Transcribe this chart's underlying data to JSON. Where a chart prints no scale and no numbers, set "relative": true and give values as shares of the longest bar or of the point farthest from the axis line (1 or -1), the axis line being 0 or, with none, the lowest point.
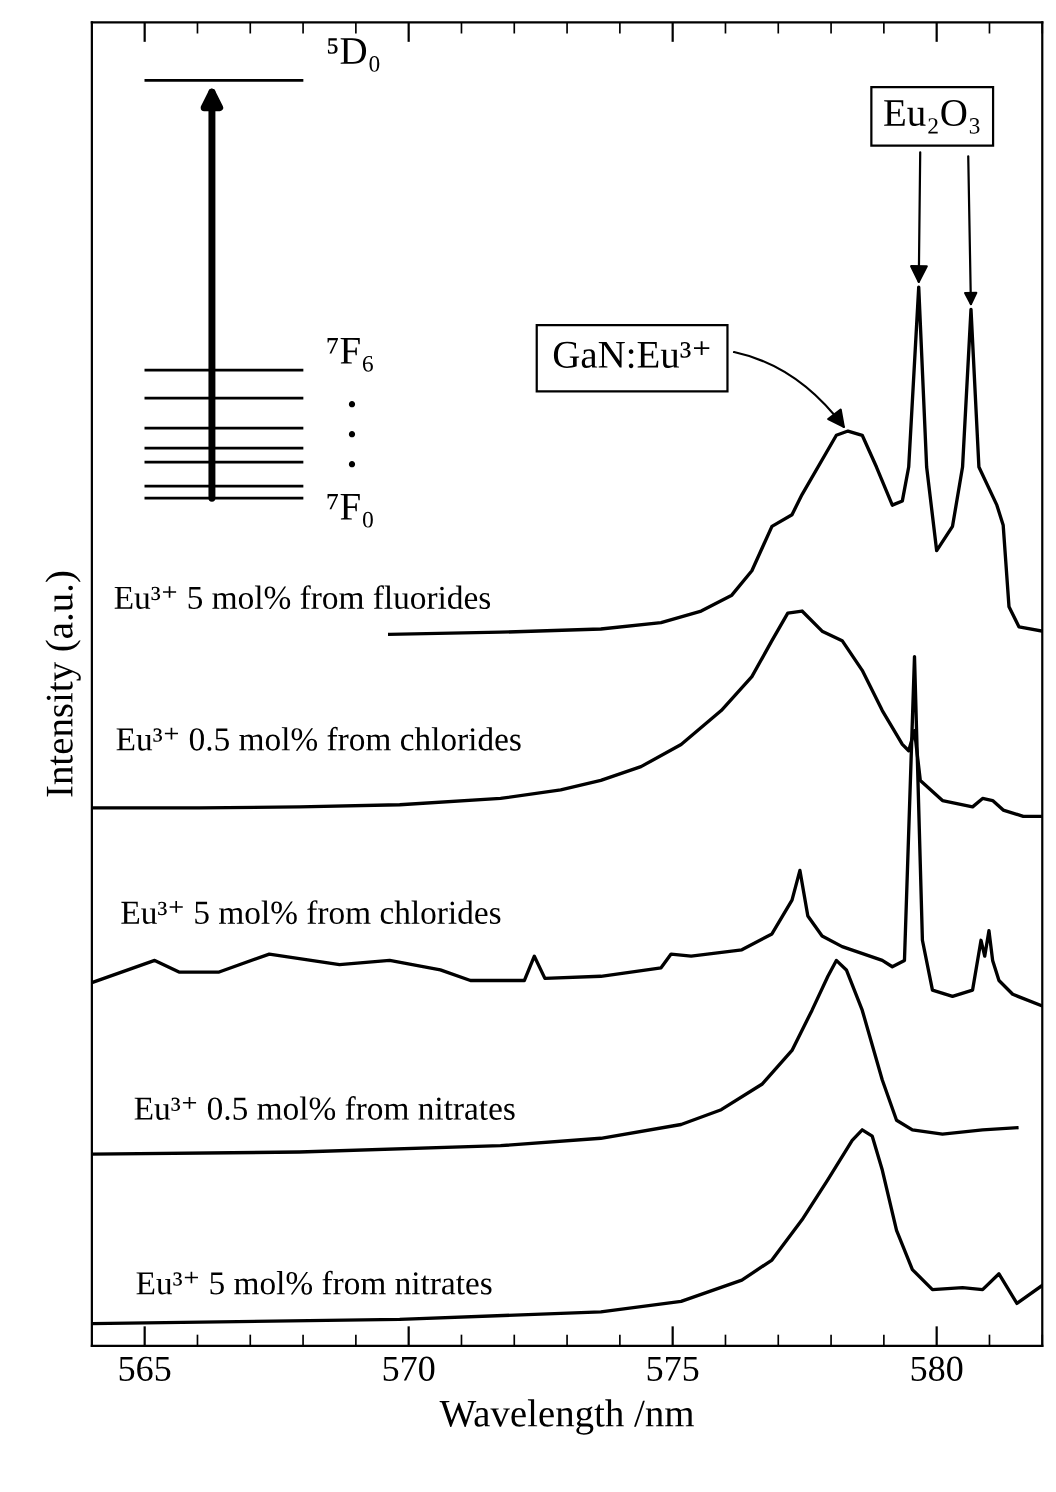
{
  "chart_data": {
    "type": "line",
    "relative": true,
    "xlabel": "Wavelength /nm",
    "ylabel": "Intensity (a.u.)",
    "xlim": [
      564,
      582
    ],
    "xticks": [
      565,
      {
        "value": 566,
        "label": null
      },
      {
        "value": 567,
        "label": null
      },
      {
        "value": 568,
        "label": null
      },
      {
        "value": 569,
        "label": null
      },
      570,
      {
        "value": 571,
        "label": null
      },
      {
        "value": 572,
        "label": null
      },
      {
        "value": 573,
        "label": null
      },
      {
        "value": 574,
        "label": null
      },
      575,
      {
        "value": 576,
        "label": null
      },
      {
        "value": 577,
        "label": null
      },
      {
        "value": 578,
        "label": null
      },
      {
        "value": 579,
        "label": null
      },
      580,
      {
        "value": 581,
        "label": null
      },
      {
        "value": 582,
        "label": null
      }
    ],
    "grid": false,
    "legend": false,
    "marker": "none",
    "line_style": "solid",
    "series": [
      {
        "name": "Eu³⁺ 5 mol% from fluorides",
        "color": "#000000",
        "x": [
          569.64,
          571.74,
          573.64,
          574.78,
          575.54,
          576.12,
          576.5,
          576.88,
          577.26,
          577.45,
          578.1,
          578.32,
          578.59,
          578.86,
          579.16,
          579.35,
          579.47,
          579.66,
          579.81,
          580.0,
          580.3,
          580.49,
          580.65,
          580.8,
          581.14,
          581.26,
          581.37,
          581.56,
          582
        ],
        "values": [
          0.672,
          0.674,
          0.677,
          0.683,
          0.694,
          0.709,
          0.732,
          0.774,
          0.785,
          0.804,
          0.86,
          0.864,
          0.86,
          0.83,
          0.794,
          0.798,
          0.83,
          1.0,
          0.83,
          0.751,
          0.774,
          0.83,
          0.979,
          0.83,
          0.794,
          0.775,
          0.698,
          0.679,
          0.675
        ]
      },
      {
        "name": "Eu³⁺ 0.5 mol% from chlorides",
        "color": "#000000",
        "x": [
          564,
          566.03,
          567.93,
          569.83,
          571.74,
          572.88,
          573.64,
          574.4,
          575.16,
          575.92,
          576.5,
          576.88,
          577.18,
          577.45,
          577.83,
          578.21,
          578.59,
          578.97,
          579.35,
          579.47,
          579.58,
          579.69,
          580.11,
          580.68,
          580.87,
          581.06,
          581.26,
          581.64,
          582
        ],
        "values": [
          0.508,
          0.508,
          0.509,
          0.511,
          0.517,
          0.525,
          0.534,
          0.547,
          0.568,
          0.6,
          0.632,
          0.666,
          0.692,
          0.694,
          0.675,
          0.666,
          0.638,
          0.6,
          0.568,
          0.562,
          0.581,
          0.534,
          0.515,
          0.509,
          0.517,
          0.515,
          0.506,
          0.5,
          0.5
        ]
      },
      {
        "name": "Eu³⁺ 5 mol% from chlorides",
        "color": "#000000",
        "x": [
          564,
          565.19,
          565.65,
          566.41,
          567.36,
          568.69,
          569.64,
          570.6,
          571.17,
          572.19,
          572.38,
          572.58,
          573.64,
          574.78,
          574.97,
          575.35,
          576.31,
          576.88,
          577.26,
          577.41,
          577.56,
          577.83,
          578.21,
          578.97,
          579.16,
          579.39,
          579.58,
          579.73,
          579.92,
          580.3,
          580.68,
          580.84,
          580.91,
          580.99,
          581.06,
          581.18,
          581.44,
          582
        ],
        "values": [
          0.343,
          0.364,
          0.353,
          0.353,
          0.37,
          0.36,
          0.364,
          0.355,
          0.345,
          0.345,
          0.368,
          0.347,
          0.349,
          0.357,
          0.37,
          0.368,
          0.374,
          0.389,
          0.421,
          0.449,
          0.406,
          0.387,
          0.377,
          0.364,
          0.358,
          0.364,
          0.651,
          0.383,
          0.336,
          0.33,
          0.336,
          0.383,
          0.368,
          0.392,
          0.364,
          0.345,
          0.332,
          0.321
        ]
      },
      {
        "name": "Eu³⁺ 0.5 mol% from nitrates",
        "color": "#000000",
        "x": [
          564,
          567.93,
          571.74,
          573.64,
          575.16,
          575.92,
          576.69,
          577.26,
          577.64,
          577.94,
          578.1,
          578.29,
          578.59,
          578.97,
          579.24,
          579.54,
          580.11,
          580.87,
          581.52
        ],
        "values": [
          0.181,
          0.183,
          0.189,
          0.196,
          0.209,
          0.223,
          0.247,
          0.279,
          0.317,
          0.349,
          0.364,
          0.355,
          0.317,
          0.251,
          0.213,
          0.204,
          0.2,
          0.204,
          0.206
        ]
      },
      {
        "name": "Eu³⁺ 5 mol% from nitrates",
        "color": "#000000",
        "x": [
          564,
          569.83,
          573.64,
          575.16,
          576.31,
          576.88,
          577.45,
          577.94,
          578.4,
          578.59,
          578.78,
          578.97,
          579.24,
          579.54,
          579.92,
          580.49,
          580.87,
          581.18,
          581.52,
          582
        ],
        "values": [
          0.021,
          0.025,
          0.032,
          0.042,
          0.062,
          0.081,
          0.119,
          0.157,
          0.194,
          0.204,
          0.198,
          0.166,
          0.109,
          0.072,
          0.053,
          0.055,
          0.053,
          0.068,
          0.04,
          0.057
        ]
      }
    ],
    "annotations": [
      "⁵D₀",
      "⁷F₆",
      "⁷F₀",
      {
        "text": "GaN:Eu³⁺",
        "x": 578.3,
        "y": 0.864
      },
      {
        "text": "Eu₂O₃",
        "x": 579.66,
        "y": 1.0
      }
    ]
  }
}
